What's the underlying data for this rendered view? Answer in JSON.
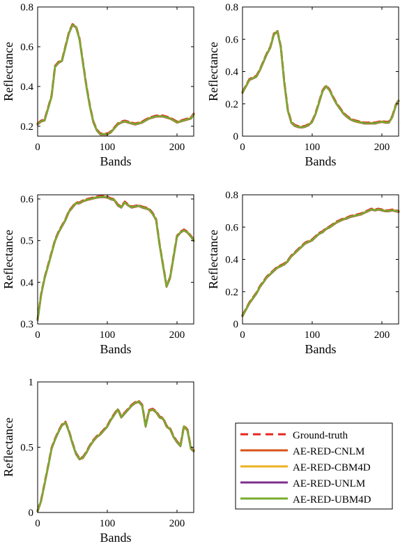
{
  "colors": {
    "ground_truth": "#e8261f",
    "ae_red_cnlm": "#d95319",
    "ae_red_cbm4d": "#edb120",
    "ae_red_unlm": "#7e2f8e",
    "ae_red_ubm4d": "#77ac30"
  },
  "legend": {
    "placement": "bottom-right",
    "entries": [
      "Ground-truth",
      "AE-RED-CNLM",
      "AE-RED-CBM4D",
      "AE-RED-UNLM",
      "AE-RED-UBM4D"
    ]
  },
  "chart_data": [
    {
      "type": "line",
      "xlabel": "Bands",
      "ylabel": "Reflectance",
      "xlim": [
        0,
        224
      ],
      "ylim": [
        0.15,
        0.8
      ],
      "xticks": [
        "0",
        "100",
        "200"
      ],
      "xtick_values": [
        0,
        100,
        200
      ],
      "yticks": [
        "0.2",
        "0.4",
        "0.6",
        "0.8"
      ],
      "ytick_values": [
        0.2,
        0.4,
        0.6,
        0.8
      ],
      "series_x": [
        0,
        5,
        10,
        15,
        20,
        25,
        30,
        35,
        40,
        45,
        50,
        55,
        60,
        65,
        70,
        75,
        80,
        85,
        90,
        95,
        100,
        105,
        110,
        115,
        120,
        125,
        130,
        135,
        140,
        145,
        150,
        155,
        160,
        165,
        170,
        175,
        180,
        185,
        190,
        195,
        200,
        205,
        210,
        215,
        220,
        224
      ],
      "series_y": [
        0.21,
        0.225,
        0.23,
        0.29,
        0.35,
        0.5,
        0.52,
        0.53,
        0.6,
        0.67,
        0.71,
        0.7,
        0.64,
        0.52,
        0.4,
        0.3,
        0.22,
        0.18,
        0.16,
        0.16,
        0.16,
        0.17,
        0.19,
        0.21,
        0.22,
        0.225,
        0.22,
        0.215,
        0.21,
        0.215,
        0.22,
        0.23,
        0.24,
        0.245,
        0.25,
        0.25,
        0.25,
        0.245,
        0.24,
        0.23,
        0.22,
        0.225,
        0.23,
        0.235,
        0.24,
        0.26
      ]
    },
    {
      "type": "line",
      "xlabel": "Bands",
      "ylabel": "Reflectance",
      "xlim": [
        0,
        224
      ],
      "ylim": [
        0,
        0.8
      ],
      "xticks": [
        "0",
        "100",
        "200"
      ],
      "xtick_values": [
        0,
        100,
        200
      ],
      "yticks": [
        "0",
        "0.2",
        "0.4",
        "0.6",
        "0.8"
      ],
      "ytick_values": [
        0,
        0.2,
        0.4,
        0.6,
        0.8
      ],
      "series_x": [
        0,
        5,
        10,
        15,
        20,
        25,
        30,
        35,
        40,
        45,
        50,
        55,
        60,
        65,
        70,
        75,
        80,
        85,
        90,
        95,
        100,
        105,
        110,
        115,
        120,
        125,
        130,
        135,
        140,
        145,
        150,
        155,
        160,
        165,
        170,
        175,
        180,
        185,
        190,
        195,
        200,
        205,
        210,
        215,
        220,
        224
      ],
      "series_y": [
        0.27,
        0.31,
        0.35,
        0.36,
        0.37,
        0.41,
        0.46,
        0.51,
        0.55,
        0.63,
        0.65,
        0.55,
        0.33,
        0.16,
        0.085,
        0.065,
        0.058,
        0.055,
        0.06,
        0.07,
        0.09,
        0.14,
        0.21,
        0.28,
        0.31,
        0.285,
        0.24,
        0.2,
        0.17,
        0.14,
        0.12,
        0.105,
        0.095,
        0.09,
        0.085,
        0.08,
        0.08,
        0.08,
        0.08,
        0.085,
        0.09,
        0.085,
        0.085,
        0.12,
        0.19,
        0.22
      ]
    },
    {
      "type": "line",
      "xlabel": "Bands",
      "ylabel": "Reflectance",
      "xlim": [
        0,
        224
      ],
      "ylim": [
        0.3,
        0.61
      ],
      "xticks": [
        "0",
        "100",
        "200"
      ],
      "xtick_values": [
        0,
        100,
        200
      ],
      "yticks": [
        "0.3",
        "0.4",
        "0.5",
        "0.6"
      ],
      "ytick_values": [
        0.3,
        0.4,
        0.5,
        0.6
      ],
      "series_x": [
        0,
        5,
        10,
        15,
        20,
        25,
        30,
        35,
        40,
        45,
        50,
        55,
        60,
        65,
        70,
        75,
        80,
        85,
        90,
        95,
        100,
        105,
        110,
        115,
        120,
        125,
        130,
        135,
        140,
        145,
        150,
        155,
        160,
        165,
        170,
        175,
        180,
        185,
        190,
        195,
        200,
        205,
        210,
        215,
        220,
        224
      ],
      "series_y": [
        0.31,
        0.37,
        0.41,
        0.44,
        0.47,
        0.5,
        0.52,
        0.535,
        0.55,
        0.57,
        0.58,
        0.59,
        0.59,
        0.595,
        0.598,
        0.6,
        0.602,
        0.604,
        0.605,
        0.605,
        0.604,
        0.6,
        0.598,
        0.585,
        0.58,
        0.592,
        0.585,
        0.58,
        0.582,
        0.584,
        0.58,
        0.578,
        0.575,
        0.565,
        0.55,
        0.49,
        0.44,
        0.39,
        0.41,
        0.46,
        0.51,
        0.52,
        0.525,
        0.52,
        0.51,
        0.5
      ]
    },
    {
      "type": "line",
      "xlabel": "Bands",
      "ylabel": "Reflectance",
      "xlim": [
        0,
        224
      ],
      "ylim": [
        0,
        0.8
      ],
      "xticks": [
        "0",
        "100",
        "200"
      ],
      "xtick_values": [
        0,
        100,
        200
      ],
      "yticks": [
        "0",
        "0.2",
        "0.4",
        "0.6",
        "0.8"
      ],
      "ytick_values": [
        0,
        0.2,
        0.4,
        0.6,
        0.8
      ],
      "series_x": [
        0,
        5,
        10,
        15,
        20,
        25,
        30,
        35,
        40,
        45,
        50,
        55,
        60,
        65,
        70,
        75,
        80,
        85,
        90,
        95,
        100,
        105,
        110,
        115,
        120,
        125,
        130,
        135,
        140,
        145,
        150,
        155,
        160,
        165,
        170,
        175,
        180,
        185,
        190,
        195,
        200,
        205,
        210,
        215,
        220,
        224
      ],
      "series_y": [
        0.05,
        0.09,
        0.13,
        0.16,
        0.19,
        0.23,
        0.26,
        0.29,
        0.31,
        0.33,
        0.35,
        0.36,
        0.37,
        0.39,
        0.42,
        0.44,
        0.46,
        0.48,
        0.5,
        0.51,
        0.52,
        0.54,
        0.56,
        0.57,
        0.59,
        0.6,
        0.615,
        0.63,
        0.64,
        0.65,
        0.655,
        0.665,
        0.67,
        0.675,
        0.68,
        0.69,
        0.7,
        0.71,
        0.705,
        0.71,
        0.705,
        0.7,
        0.7,
        0.705,
        0.7,
        0.695
      ]
    },
    {
      "type": "line",
      "xlabel": "Bands",
      "ylabel": "Reflectance",
      "xlim": [
        0,
        224
      ],
      "ylim": [
        0,
        1
      ],
      "xticks": [
        "0",
        "100",
        "200"
      ],
      "xtick_values": [
        0,
        100,
        200
      ],
      "yticks": [
        "0",
        "0.5",
        "1"
      ],
      "ytick_values": [
        0,
        0.5,
        1
      ],
      "series_x": [
        0,
        5,
        10,
        15,
        20,
        25,
        30,
        35,
        40,
        45,
        50,
        55,
        60,
        65,
        70,
        75,
        80,
        85,
        90,
        95,
        100,
        105,
        110,
        115,
        120,
        125,
        130,
        135,
        140,
        145,
        150,
        155,
        160,
        165,
        170,
        175,
        180,
        185,
        190,
        195,
        200,
        205,
        210,
        215,
        220,
        224
      ],
      "series_y": [
        0.01,
        0.09,
        0.22,
        0.35,
        0.49,
        0.56,
        0.62,
        0.67,
        0.69,
        0.62,
        0.53,
        0.45,
        0.41,
        0.42,
        0.46,
        0.51,
        0.55,
        0.58,
        0.6,
        0.63,
        0.66,
        0.71,
        0.75,
        0.79,
        0.73,
        0.76,
        0.79,
        0.82,
        0.84,
        0.85,
        0.82,
        0.66,
        0.78,
        0.79,
        0.77,
        0.73,
        0.72,
        0.66,
        0.64,
        0.58,
        0.54,
        0.51,
        0.66,
        0.63,
        0.49,
        0.47
      ]
    }
  ]
}
